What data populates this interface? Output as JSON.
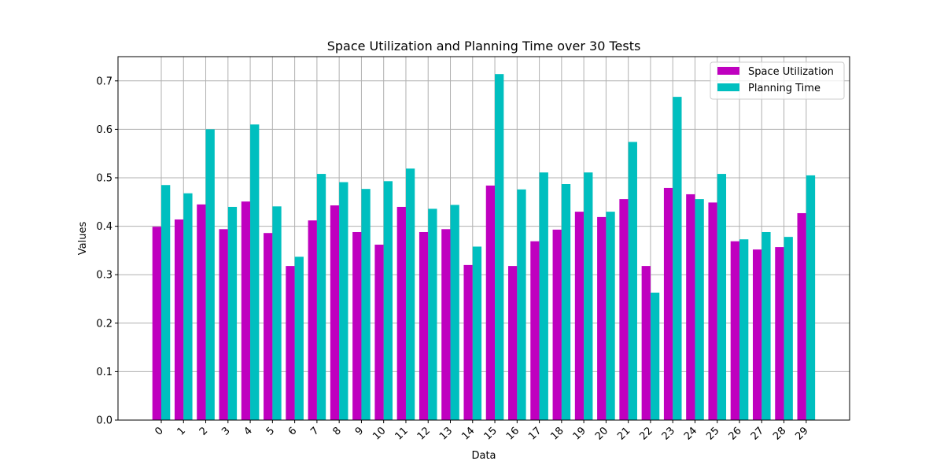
{
  "chart_data": {
    "type": "bar",
    "title": "Space Utilization and Planning Time over 30 Tests",
    "xlabel": "Data",
    "ylabel": "Values",
    "categories": [
      "0",
      "1",
      "2",
      "3",
      "4",
      "5",
      "6",
      "7",
      "8",
      "9",
      "10",
      "11",
      "12",
      "13",
      "14",
      "15",
      "16",
      "17",
      "18",
      "19",
      "20",
      "21",
      "22",
      "23",
      "24",
      "25",
      "26",
      "27",
      "28",
      "29"
    ],
    "ylim": [
      0,
      0.75
    ],
    "yticks": [
      "0.0",
      "0.1",
      "0.2",
      "0.3",
      "0.4",
      "0.5",
      "0.6",
      "0.7"
    ],
    "grid": true,
    "legend_position": "top-right",
    "series": [
      {
        "name": "Space Utilization",
        "color": "#bf00bf",
        "values": [
          0.399,
          0.414,
          0.445,
          0.394,
          0.451,
          0.386,
          0.318,
          0.412,
          0.443,
          0.388,
          0.362,
          0.44,
          0.388,
          0.394,
          0.32,
          0.484,
          0.318,
          0.369,
          0.393,
          0.43,
          0.419,
          0.456,
          0.318,
          0.479,
          0.466,
          0.449,
          0.369,
          0.352,
          0.357,
          0.427
        ]
      },
      {
        "name": "Planning Time",
        "color": "#00bfbf",
        "values": [
          0.485,
          0.468,
          0.6,
          0.44,
          0.61,
          0.441,
          0.337,
          0.508,
          0.491,
          0.477,
          0.493,
          0.519,
          0.436,
          0.444,
          0.358,
          0.714,
          0.476,
          0.511,
          0.487,
          0.511,
          0.43,
          0.574,
          0.263,
          0.667,
          0.456,
          0.508,
          0.373,
          0.388,
          0.378,
          0.505
        ]
      }
    ]
  }
}
